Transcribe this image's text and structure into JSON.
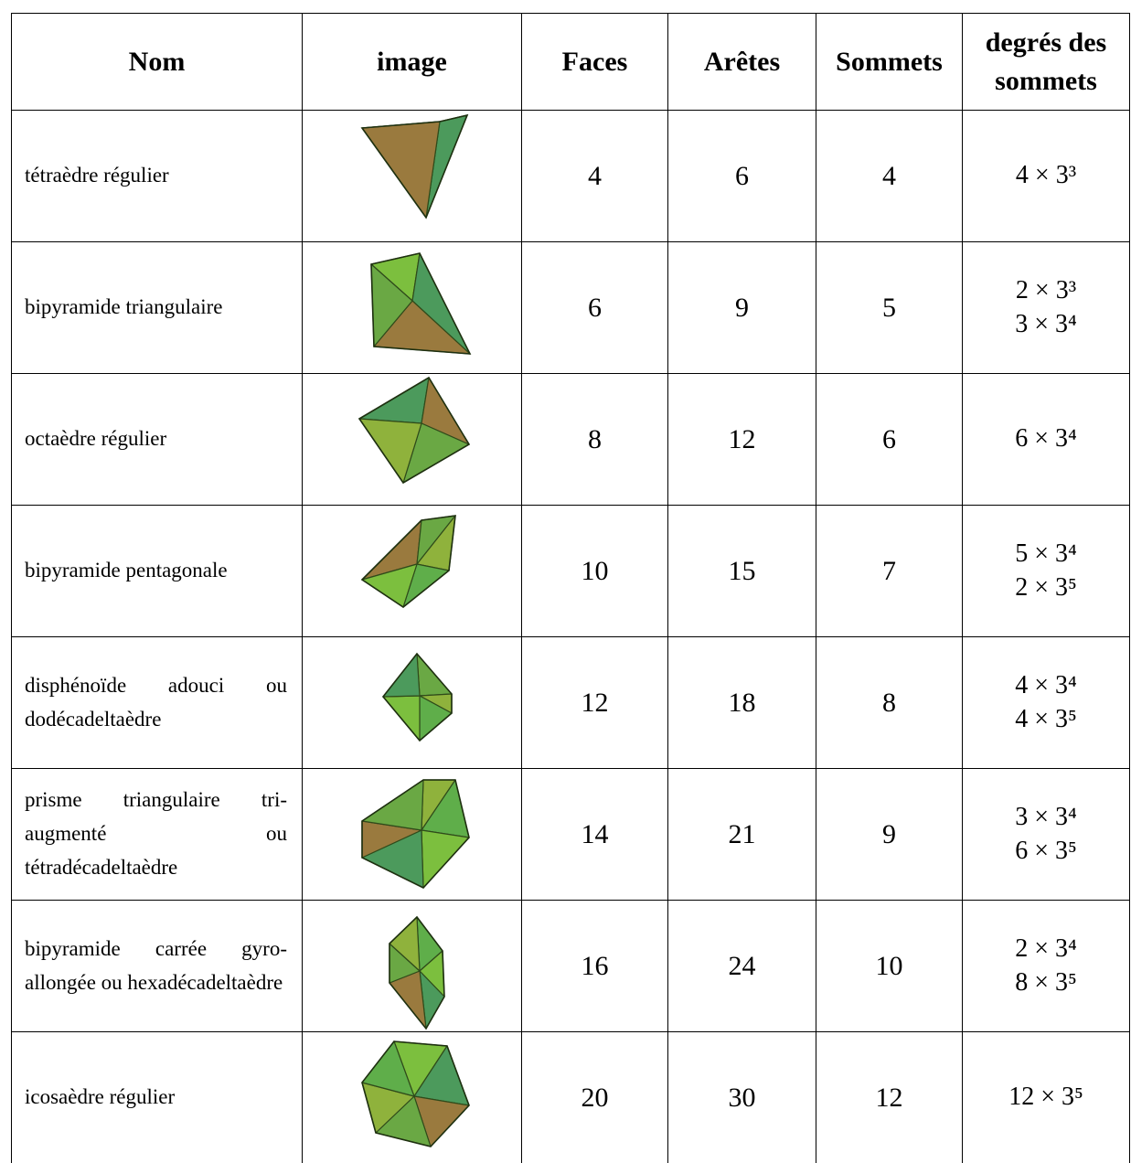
{
  "table": {
    "header": [
      "Nom",
      "image",
      "Faces",
      "Arêtes",
      "Sommets",
      "degrés des sommets"
    ],
    "rows": [
      {
        "name": "tétraèdre régulier",
        "faces": 4,
        "edges": 6,
        "vertices": 4,
        "degrees": [
          "4 × 3³"
        ]
      },
      {
        "name": "bipyramide triangulaire",
        "faces": 6,
        "edges": 9,
        "vertices": 5,
        "degrees": [
          "2 × 3³",
          "3 × 3⁴"
        ]
      },
      {
        "name": "octaèdre régulier",
        "faces": 8,
        "edges": 12,
        "vertices": 6,
        "degrees": [
          "6 × 3⁴"
        ]
      },
      {
        "name": "bipyramide pentagonale",
        "faces": 10,
        "edges": 15,
        "vertices": 7,
        "degrees": [
          "5 × 3⁴",
          "2 × 3⁵"
        ]
      },
      {
        "name": "disphénoïde adouci ou dodécadeltaèdre",
        "faces": 12,
        "edges": 18,
        "vertices": 8,
        "degrees": [
          "4 × 3⁴",
          "4 × 3⁵"
        ]
      },
      {
        "name": "prisme triangulaire tri-augmenté ou tétradécadeltaèdre",
        "faces": 14,
        "edges": 21,
        "vertices": 9,
        "degrees": [
          "3 × 3⁴",
          "6 × 3⁵"
        ]
      },
      {
        "name": "bipyramide carrée gyro-allongée ou hexadécadeltaèdre",
        "faces": 16,
        "edges": 24,
        "vertices": 10,
        "degrees": [
          "2 × 3⁴",
          "8 × 3⁵"
        ]
      },
      {
        "name": "icosaèdre régulier",
        "faces": 20,
        "edges": 30,
        "vertices": 12,
        "degrees": [
          "12 × 3⁵"
        ]
      }
    ]
  }
}
